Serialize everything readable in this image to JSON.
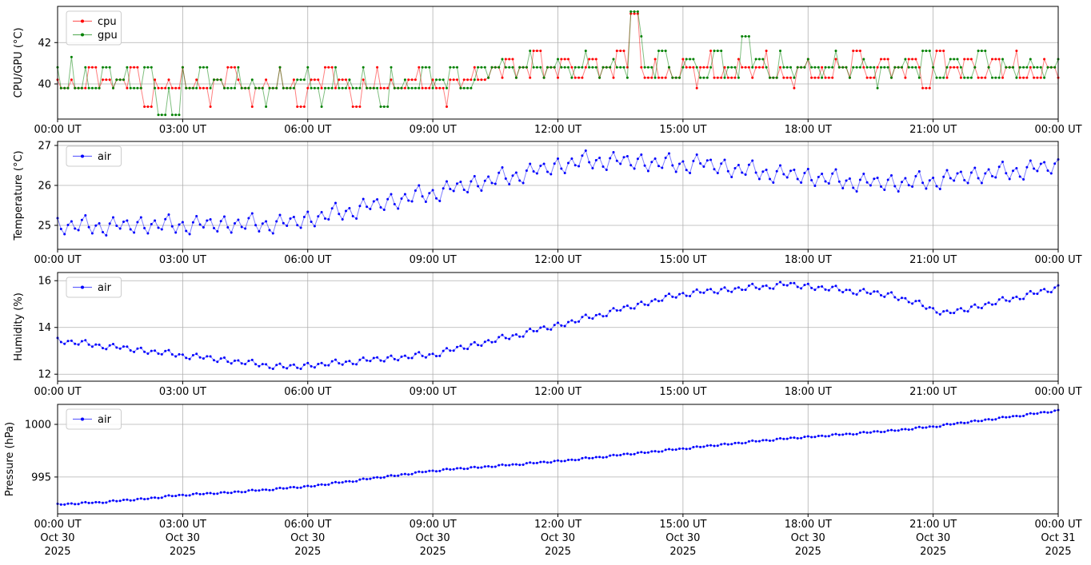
{
  "figure": {
    "background": "#ffffff",
    "colors": {
      "grid": "#b0b0b0",
      "axis": "#000000",
      "text": "#000000",
      "legend_border": "#cccccc",
      "cpu": "#ff0000",
      "gpu": "#008000",
      "air": "#0000ff"
    }
  },
  "x_axis": {
    "tick_hours": [
      0,
      3,
      6,
      9,
      12,
      15,
      18,
      21,
      24
    ],
    "tick_labels": [
      "00:00 UT",
      "03:00 UT",
      "06:00 UT",
      "09:00 UT",
      "12:00 UT",
      "15:00 UT",
      "18:00 UT",
      "21:00 UT",
      "00:00 UT"
    ],
    "tick_date_labels": [
      "Oct 30",
      "Oct 30",
      "Oct 30",
      "Oct 30",
      "Oct 30",
      "Oct 30",
      "Oct 30",
      "Oct 30",
      "Oct 31"
    ],
    "tick_year_labels": [
      "2025",
      "2025",
      "2025",
      "2025",
      "2025",
      "2025",
      "2025",
      "2025",
      "2025"
    ]
  },
  "chart_data": [
    {
      "type": "line",
      "panel": "cpu-gpu-temperature",
      "title": "",
      "ylabel": "CPU/GPU (°C)",
      "yticks": [
        40,
        42
      ],
      "ylim": [
        38.3,
        43.75
      ],
      "grid": true,
      "legend": {
        "position": "upper left",
        "entries": [
          "cpu",
          "gpu"
        ]
      },
      "x": {
        "start_hour": 0,
        "end_hour": 24,
        "step_minutes": 10
      },
      "series": [
        {
          "name": "cpu",
          "color": "#ff0000",
          "quantized": true,
          "values": [
            40.2,
            39.8,
            40.2,
            39.8,
            39.8,
            40.8,
            39.8,
            40.2,
            39.8,
            40.2,
            39.8,
            40.8,
            39.8,
            38.9,
            40.2,
            39.8,
            40.2,
            39.8,
            40.8,
            39.8,
            40.2,
            39.8,
            38.9,
            40.2,
            39.8,
            40.8,
            40.2,
            39.8,
            38.9,
            39.8,
            40.2,
            39.8,
            40.8,
            39.8,
            40.2,
            38.9,
            39.8,
            40.2,
            39.8,
            40.8,
            39.8,
            40.2,
            39.8,
            38.9,
            40.2,
            39.8,
            40.8,
            39.8,
            40.2,
            39.8,
            39.8,
            40.2,
            40.8,
            39.8,
            40.2,
            39.8,
            38.9,
            40.2,
            39.8,
            40.2,
            40.8,
            40.2,
            40.3,
            40.8,
            40.3,
            41.2,
            40.3,
            40.8,
            40.3,
            41.6,
            40.3,
            40.8,
            40.3,
            41.2,
            40.8,
            40.3,
            40.8,
            41.2,
            40.3,
            40.8,
            40.3,
            41.6,
            40.8,
            43.4,
            40.8,
            40.3,
            41.2,
            40.3,
            40.8,
            40.3,
            41.2,
            40.8,
            39.8,
            40.8,
            41.6,
            40.3,
            40.8,
            40.3,
            41.2,
            40.8,
            40.3,
            40.8,
            41.6,
            40.3,
            40.8,
            40.3,
            39.8,
            40.8,
            41.2,
            40.3,
            40.8,
            40.3,
            41.2,
            40.8,
            40.3,
            41.6,
            40.8,
            40.3,
            40.8,
            41.2,
            40.3,
            40.8,
            40.3,
            41.2,
            40.8,
            39.8,
            40.8,
            41.6,
            40.3,
            40.8,
            40.3,
            41.2,
            40.8,
            40.3,
            40.8,
            41.2,
            40.3,
            40.8,
            41.6,
            40.3,
            40.8,
            40.3,
            41.2,
            40.8,
            40.3
          ]
        },
        {
          "name": "gpu",
          "color": "#008000",
          "quantized": true,
          "values": [
            40.8,
            39.8,
            41.3,
            39.8,
            40.8,
            39.8,
            39.8,
            40.8,
            39.8,
            40.2,
            40.8,
            39.8,
            39.8,
            40.8,
            39.8,
            38.5,
            39.8,
            38.5,
            40.8,
            39.8,
            39.8,
            40.8,
            39.8,
            40.2,
            39.8,
            39.8,
            40.8,
            39.8,
            40.2,
            39.8,
            38.9,
            39.8,
            40.8,
            39.8,
            39.8,
            40.2,
            40.8,
            39.8,
            38.9,
            39.8,
            40.8,
            39.8,
            40.2,
            39.8,
            40.8,
            39.8,
            39.8,
            38.9,
            40.8,
            39.8,
            40.2,
            39.8,
            39.8,
            40.8,
            39.8,
            40.2,
            39.8,
            40.8,
            39.8,
            39.8,
            40.2,
            40.8,
            40.3,
            40.8,
            41.2,
            40.8,
            40.3,
            40.8,
            41.6,
            40.8,
            40.3,
            40.8,
            41.2,
            40.8,
            40.3,
            40.8,
            41.6,
            40.8,
            40.3,
            40.8,
            41.2,
            40.8,
            40.3,
            43.5,
            42.3,
            40.8,
            40.3,
            41.6,
            40.8,
            40.3,
            40.8,
            41.2,
            40.8,
            40.3,
            40.8,
            41.6,
            40.3,
            40.8,
            40.3,
            42.3,
            40.8,
            41.2,
            40.8,
            40.3,
            41.6,
            40.8,
            40.3,
            40.8,
            41.2,
            40.8,
            40.3,
            40.8,
            41.6,
            40.8,
            40.3,
            40.8,
            41.2,
            40.8,
            39.8,
            40.8,
            40.3,
            40.8,
            41.2,
            40.8,
            40.3,
            41.6,
            40.8,
            40.3,
            40.8,
            41.2,
            40.8,
            40.3,
            40.8,
            41.6,
            40.8,
            40.3,
            41.2,
            40.8,
            40.3,
            40.8,
            41.2,
            40.8,
            40.3,
            40.8,
            41.2
          ]
        }
      ]
    },
    {
      "type": "line",
      "panel": "air-temperature",
      "title": "",
      "ylabel": "Temperature (°C)",
      "yticks": [
        25,
        26,
        27
      ],
      "ylim": [
        24.4,
        27.1
      ],
      "grid": true,
      "legend": {
        "position": "upper left",
        "entries": [
          "air"
        ]
      },
      "x": {
        "start_hour": 0,
        "end_hour": 24,
        "step_minutes": 10
      },
      "series": [
        {
          "name": "air",
          "color": "#0000ff",
          "quantized": false,
          "jitter": 0.07,
          "values": [
            25.18,
            24.78,
            25.1,
            24.88,
            25.25,
            24.8,
            25.05,
            24.75,
            25.2,
            24.92,
            25.12,
            24.82,
            25.2,
            24.8,
            25.12,
            24.9,
            25.27,
            24.82,
            25.08,
            24.78,
            25.23,
            24.95,
            25.15,
            24.85,
            25.22,
            24.82,
            25.14,
            24.92,
            25.3,
            24.85,
            25.1,
            24.8,
            25.26,
            24.99,
            25.21,
            24.94,
            25.34,
            24.98,
            25.33,
            25.15,
            25.56,
            25.15,
            25.43,
            25.17,
            25.66,
            25.41,
            25.65,
            25.39,
            25.78,
            25.42,
            25.78,
            25.6,
            26.0,
            25.59,
            25.88,
            25.61,
            26.1,
            25.86,
            26.09,
            25.83,
            26.23,
            25.87,
            26.22,
            26.04,
            26.45,
            26.03,
            26.32,
            26.06,
            26.54,
            26.3,
            26.54,
            26.28,
            26.67,
            26.31,
            26.67,
            26.48,
            26.87,
            26.43,
            26.69,
            26.39,
            26.83,
            26.54,
            26.73,
            26.42,
            26.77,
            26.36,
            26.67,
            26.44,
            26.8,
            26.34,
            26.6,
            26.31,
            26.77,
            26.47,
            26.64,
            26.31,
            26.64,
            26.21,
            26.51,
            26.27,
            26.62,
            26.16,
            26.39,
            26.07,
            26.5,
            26.2,
            26.39,
            26.07,
            26.41,
            25.99,
            26.29,
            26.05,
            26.4,
            25.93,
            26.17,
            25.85,
            26.29,
            26.0,
            26.19,
            25.89,
            26.25,
            25.85,
            26.18,
            25.97,
            26.35,
            25.92,
            26.19,
            25.91,
            26.38,
            26.12,
            26.34,
            26.06,
            26.44,
            26.06,
            26.4,
            26.2,
            26.59,
            26.16,
            26.43,
            26.15,
            26.62,
            26.36,
            26.58,
            26.3,
            26.65
          ]
        }
      ]
    },
    {
      "type": "line",
      "panel": "air-humidity",
      "title": "",
      "ylabel": "Humidity (%)",
      "yticks": [
        12,
        14,
        16
      ],
      "ylim": [
        11.7,
        16.35
      ],
      "grid": true,
      "legend": {
        "position": "upper left",
        "entries": [
          "air"
        ]
      },
      "x": {
        "start_hour": 0,
        "end_hour": 24,
        "step_minutes": 10
      },
      "series": [
        {
          "name": "air",
          "color": "#0000ff",
          "quantized": false,
          "jitter": 0.05,
          "values": [
            13.55,
            13.3,
            13.43,
            13.27,
            13.45,
            13.18,
            13.26,
            13.07,
            13.29,
            13.09,
            13.18,
            12.95,
            13.13,
            12.88,
            13.01,
            12.85,
            13.03,
            12.76,
            12.84,
            12.65,
            12.87,
            12.67,
            12.76,
            12.53,
            12.71,
            12.46,
            12.59,
            12.43,
            12.61,
            12.34,
            12.42,
            12.23,
            12.45,
            12.25,
            12.41,
            12.23,
            12.48,
            12.29,
            12.48,
            12.38,
            12.62,
            12.41,
            12.56,
            12.42,
            12.71,
            12.56,
            12.72,
            12.55,
            12.79,
            12.6,
            12.79,
            12.69,
            12.94,
            12.72,
            12.87,
            12.78,
            13.11,
            13.01,
            13.21,
            13.08,
            13.37,
            13.22,
            13.45,
            13.39,
            13.68,
            13.51,
            13.7,
            13.61,
            13.94,
            13.84,
            14.04,
            13.91,
            14.2,
            14.06,
            14.3,
            14.25,
            14.54,
            14.38,
            14.57,
            14.49,
            14.82,
            14.73,
            14.93,
            14.81,
            15.1,
            14.96,
            15.2,
            15.15,
            15.44,
            15.28,
            15.47,
            15.34,
            15.62,
            15.48,
            15.64,
            15.46,
            15.71,
            15.52,
            15.71,
            15.61,
            15.86,
            15.64,
            15.79,
            15.66,
            15.94,
            15.8,
            15.9,
            15.67,
            15.86,
            15.61,
            15.75,
            15.59,
            15.78,
            15.51,
            15.6,
            15.41,
            15.64,
            15.44,
            15.54,
            15.31,
            15.5,
            15.18,
            15.25,
            15.02,
            15.14,
            14.8,
            14.82,
            14.56,
            14.72,
            14.62,
            14.82,
            14.69,
            14.98,
            14.83,
            15.06,
            15.0,
            15.29,
            15.12,
            15.31,
            15.22,
            15.55,
            15.44,
            15.64,
            15.51,
            15.8
          ]
        }
      ]
    },
    {
      "type": "line",
      "panel": "air-pressure",
      "title": "",
      "ylabel": "Pressure (hPa)",
      "yticks": [
        995,
        1000
      ],
      "ylim": [
        991.5,
        1001.9
      ],
      "grid": true,
      "legend": {
        "position": "upper left",
        "entries": [
          "air"
        ]
      },
      "x": {
        "start_hour": 0,
        "end_hour": 24,
        "step_minutes": 10
      },
      "series": [
        {
          "name": "air",
          "color": "#0000ff",
          "quantized": false,
          "jitter": 0.04,
          "values": [
            992.46,
            992.38,
            992.49,
            992.43,
            992.61,
            992.54,
            992.6,
            992.57,
            992.77,
            992.73,
            992.84,
            992.79,
            992.96,
            992.92,
            993.05,
            993.03,
            993.25,
            993.2,
            993.3,
            993.25,
            993.44,
            993.38,
            993.47,
            993.41,
            993.56,
            993.5,
            993.62,
            993.58,
            993.78,
            993.72,
            993.8,
            993.77,
            993.97,
            993.93,
            994.04,
            993.99,
            994.16,
            994.13,
            994.29,
            994.28,
            994.51,
            994.49,
            994.6,
            994.6,
            994.84,
            994.83,
            994.97,
            994.96,
            995.16,
            995.13,
            995.29,
            995.28,
            995.51,
            995.49,
            995.6,
            995.57,
            995.77,
            995.73,
            995.84,
            995.79,
            995.96,
            995.9,
            996.02,
            995.98,
            996.18,
            996.12,
            996.2,
            996.17,
            996.37,
            996.33,
            996.44,
            996.39,
            996.56,
            996.52,
            996.65,
            996.63,
            996.85,
            996.8,
            996.9,
            996.89,
            997.1,
            997.08,
            997.21,
            997.17,
            997.36,
            997.32,
            997.45,
            997.43,
            997.65,
            997.6,
            997.7,
            997.69,
            997.9,
            997.88,
            998.01,
            997.97,
            998.16,
            998.12,
            998.25,
            998.23,
            998.45,
            998.4,
            998.5,
            998.47,
            998.67,
            998.63,
            998.74,
            998.69,
            998.86,
            998.8,
            998.92,
            998.88,
            999.08,
            999.02,
            999.1,
            999.07,
            999.27,
            999.23,
            999.34,
            999.29,
            999.46,
            999.42,
            999.55,
            999.53,
            999.75,
            999.7,
            999.8,
            999.8,
            1000.04,
            1000.03,
            1000.17,
            1000.16,
            1000.36,
            1000.33,
            1000.49,
            1000.48,
            1000.71,
            1000.69,
            1000.8,
            1000.8,
            1001.04,
            1001.03,
            1001.17,
            1001.16,
            1001.36
          ]
        }
      ]
    }
  ]
}
